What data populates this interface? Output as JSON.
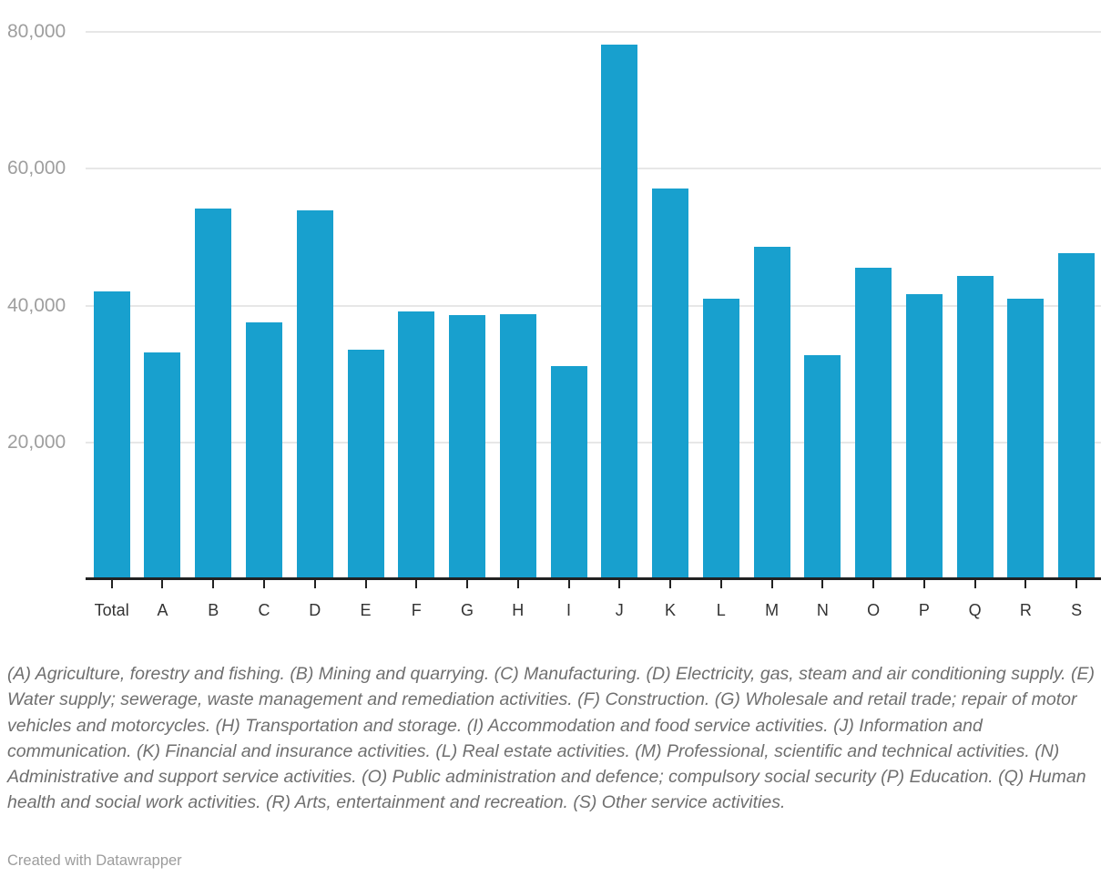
{
  "chart_data": {
    "type": "bar",
    "categories": [
      "Total",
      "A",
      "B",
      "C",
      "D",
      "E",
      "F",
      "G",
      "H",
      "I",
      "J",
      "K",
      "L",
      "M",
      "N",
      "O",
      "P",
      "Q",
      "R",
      "S"
    ],
    "values": [
      42100,
      33200,
      54200,
      37500,
      53900,
      33500,
      39100,
      38600,
      38800,
      31100,
      78200,
      57100,
      41000,
      48600,
      32700,
      45500,
      41600,
      44300,
      41000,
      47700
    ],
    "title": "",
    "xlabel": "",
    "ylabel": "",
    "ylim": [
      0,
      80400
    ],
    "yticks": [
      20000,
      40000,
      60000,
      80000
    ],
    "ytick_labels": [
      "20,000",
      "40,000",
      "60,000",
      "80,000"
    ],
    "grid": true,
    "legend": "none",
    "bar_color": "#18a0ce",
    "gridline_color": "#e7e7e7",
    "axis_color": "#222222"
  },
  "footnote": {
    "text": "(A) Agriculture, forestry and fishing. (B) Mining and quarrying. (C) Manufacturing. (D) Electricity, gas, steam and air conditioning supply. (E) Water supply; sewerage, waste management and remediation activities. (F) Construction. (G) Wholesale and retail trade; repair of motor vehicles and motorcycles. (H) Transportation and storage. (I) Accommodation and food service activities. (J) Information and communication. (K) Financial and insurance activities. (L) Real estate activities. (M) Professional, scientific and technical activities. (N) Administrative and support service activities. (O) Public administration and defence; compulsory social security (P) Education. (Q) Human health and social work activities. (R) Arts, entertainment and recreation. (S) Other service activities."
  },
  "footer": {
    "credit": "Created with Datawrapper"
  }
}
